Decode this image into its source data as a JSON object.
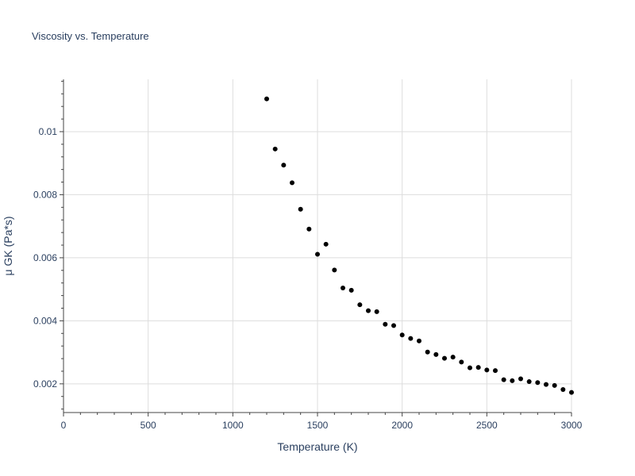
{
  "chart_data": {
    "type": "scatter",
    "title": "Viscosity vs. Temperature",
    "xlabel": "Temperature (K)",
    "ylabel": "μ GK (Pa*s)",
    "xlim": [
      0,
      3000
    ],
    "ylim": [
      0.00109,
      0.01166
    ],
    "xticks": [
      0,
      500,
      1000,
      1500,
      2000,
      2500,
      3000
    ],
    "xtick_labels": [
      "0",
      "500",
      "1000",
      "1500",
      "2000",
      "2500",
      "3000"
    ],
    "yticks": [
      0.002,
      0.004,
      0.006,
      0.008,
      0.01
    ],
    "ytick_labels": [
      "0.002",
      "0.004",
      "0.006",
      "0.008",
      "0.01"
    ],
    "grid": true,
    "marker_color": "#000000",
    "series": [
      {
        "name": "μ GK",
        "x": [
          1200,
          1250,
          1300,
          1350,
          1400,
          1450,
          1500,
          1550,
          1600,
          1650,
          1700,
          1750,
          1800,
          1850,
          1900,
          1950,
          2000,
          2050,
          2100,
          2150,
          2200,
          2250,
          2300,
          2350,
          2400,
          2450,
          2500,
          2550,
          2600,
          2650,
          2700,
          2750,
          2800,
          2850,
          2900,
          2950,
          3000
        ],
        "y": [
          0.01104,
          0.00945,
          0.00894,
          0.00838,
          0.00754,
          0.00691,
          0.00611,
          0.00643,
          0.00561,
          0.00504,
          0.00497,
          0.00451,
          0.00432,
          0.00429,
          0.00389,
          0.00385,
          0.00355,
          0.00344,
          0.00336,
          0.00301,
          0.00293,
          0.00281,
          0.00285,
          0.00269,
          0.00251,
          0.00252,
          0.00244,
          0.00242,
          0.00213,
          0.0021,
          0.00216,
          0.00207,
          0.00204,
          0.00198,
          0.00195,
          0.00182,
          0.00173
        ]
      }
    ]
  }
}
